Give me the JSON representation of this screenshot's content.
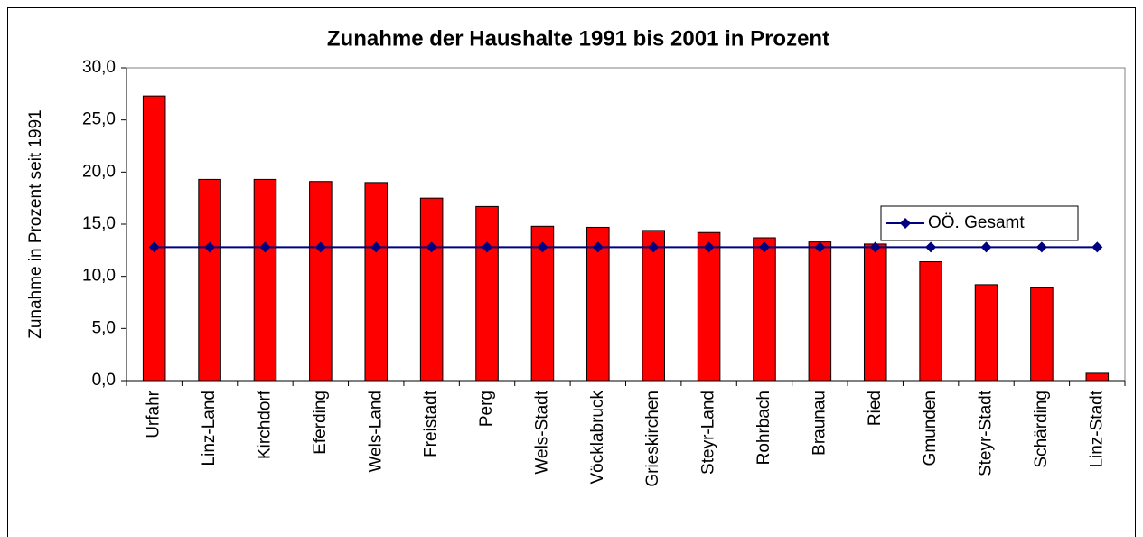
{
  "chart_data": {
    "type": "bar",
    "title": "Zunahme der Haushalte 1991 bis 2001 in Prozent",
    "y_label": "Zunahme in Prozent seit 1991",
    "categories": [
      "Urfahr",
      "Linz-Land",
      "Kirchdorf",
      "Eferding",
      "Wels-Land",
      "Freistadt",
      "Perg",
      "Wels-Stadt",
      "Vöcklabruck",
      "Grieskirchen",
      "Steyr-Land",
      "Rohrbach",
      "Braunau",
      "Ried",
      "Gmunden",
      "Steyr-Stadt",
      "Schärding",
      "Linz-Stadt"
    ],
    "series": [
      {
        "type": "bar",
        "color": "#ff0000",
        "values": [
          27.3,
          19.3,
          19.3,
          19.1,
          19.0,
          17.5,
          16.7,
          14.8,
          14.7,
          14.4,
          14.2,
          13.7,
          13.3,
          13.1,
          11.4,
          9.2,
          8.9,
          0.7
        ]
      },
      {
        "type": "line",
        "name": "OÖ. Gesamt",
        "color": "#000080",
        "values": [
          12.8,
          12.8,
          12.8,
          12.8,
          12.8,
          12.8,
          12.8,
          12.8,
          12.8,
          12.8,
          12.8,
          12.8,
          12.8,
          12.8,
          12.8,
          12.8,
          12.8,
          12.8
        ]
      }
    ],
    "ylim": [
      0,
      30
    ],
    "yticks": [
      {
        "value": 0,
        "label": "0,0"
      },
      {
        "value": 5,
        "label": "5,0"
      },
      {
        "value": 10,
        "label": "10,0"
      },
      {
        "value": 15,
        "label": "15,0"
      },
      {
        "value": 20,
        "label": "20,0"
      },
      {
        "value": 25,
        "label": "25,0"
      },
      {
        "value": 30,
        "label": "30,0"
      }
    ],
    "grid": false,
    "legend": "right"
  }
}
